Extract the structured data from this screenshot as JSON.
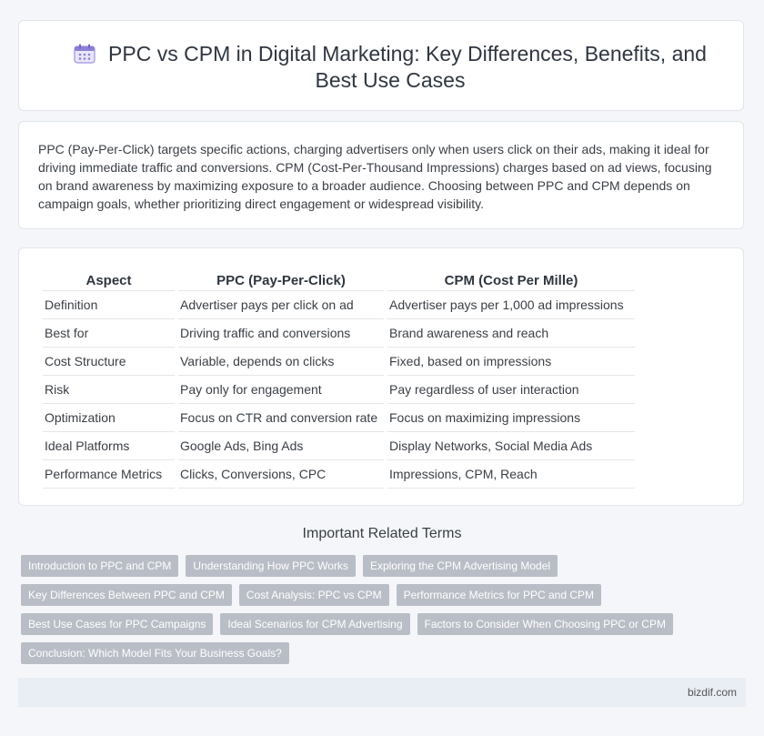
{
  "header": {
    "title": "PPC vs CPM in Digital Marketing: Key Differences, Benefits, and Best Use Cases",
    "icon": "calendar-icon",
    "accent": "#8b7fd6"
  },
  "summary": {
    "text": "PPC (Pay-Per-Click) targets specific actions, charging advertisers only when users click on their ads, making it ideal for driving immediate traffic and conversions. CPM (Cost-Per-Thousand Impressions) charges based on ad views, focusing on brand awareness by maximizing exposure to a broader audience. Choosing between PPC and CPM depends on campaign goals, whether prioritizing direct engagement or widespread visibility."
  },
  "table": {
    "headers": [
      "Aspect",
      "PPC (Pay-Per-Click)",
      "CPM (Cost Per Mille)"
    ],
    "rows": [
      [
        "Definition",
        "Advertiser pays per click on ad",
        "Advertiser pays per 1,000 ad impressions"
      ],
      [
        "Best for",
        "Driving traffic and conversions",
        "Brand awareness and reach"
      ],
      [
        "Cost Structure",
        "Variable, depends on clicks",
        "Fixed, based on impressions"
      ],
      [
        "Risk",
        "Pay only for engagement",
        "Pay regardless of user interaction"
      ],
      [
        "Optimization",
        "Focus on CTR and conversion rate",
        "Focus on maximizing impressions"
      ],
      [
        "Ideal Platforms",
        "Google Ads, Bing Ads",
        "Display Networks, Social Media Ads"
      ],
      [
        "Performance Metrics",
        "Clicks, Conversions, CPC",
        "Impressions, CPM, Reach"
      ]
    ]
  },
  "related": {
    "title": "Important Related Terms",
    "rows": [
      [
        "Introduction to PPC and CPM",
        "Understanding How PPC Works",
        "Exploring the CPM Advertising Model"
      ],
      [
        "Key Differences Between PPC and CPM",
        "Cost Analysis: PPC vs CPM",
        "Performance Metrics for PPC and CPM"
      ],
      [
        "Best Use Cases for PPC Campaigns",
        "Ideal Scenarios for CPM Advertising",
        "Factors to Consider When Choosing PPC or CPM"
      ],
      [
        "Conclusion: Which Model Fits Your Business Goals?"
      ]
    ]
  },
  "footer": {
    "site": "bizdif.com"
  }
}
